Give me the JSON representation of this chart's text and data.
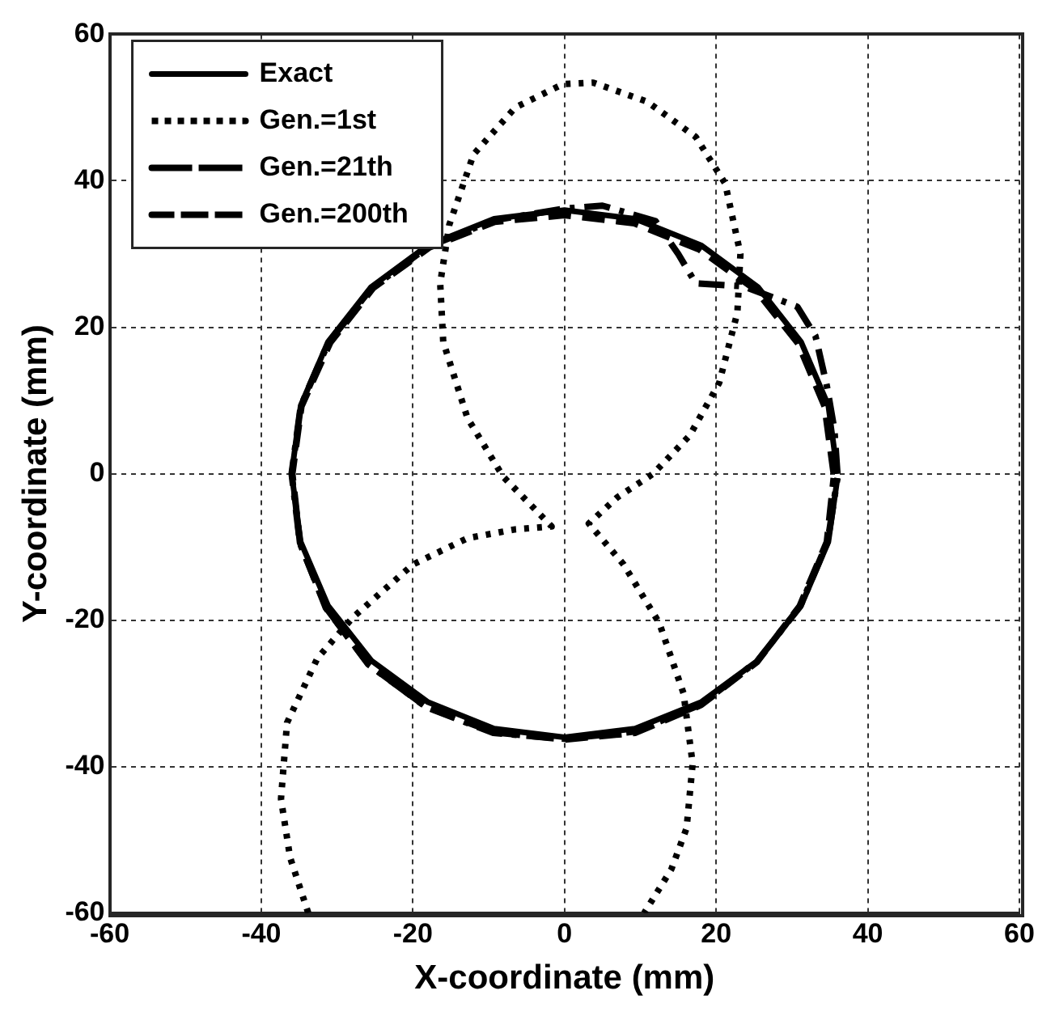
{
  "chart_data": {
    "type": "line",
    "xlabel": "X-coordinate (mm)",
    "ylabel": "Y-coordinate (mm)",
    "xlim": [
      -60,
      60
    ],
    "ylim": [
      -60,
      60
    ],
    "xticks": [
      -60,
      -40,
      -20,
      0,
      20,
      40,
      60
    ],
    "yticks": [
      -60,
      -40,
      -20,
      0,
      20,
      40,
      60
    ],
    "grid": true,
    "legend": "top left",
    "marker": "none",
    "series": [
      {
        "name": "Exact",
        "color": "#000000",
        "line_style": "solid",
        "x": [
          36,
          34.8,
          31.2,
          25.5,
          18,
          9.3,
          0,
          -9.3,
          -18,
          -25.5,
          -31.2,
          -34.8,
          -36,
          -34.8,
          -31.2,
          -25.5,
          -18,
          -9.3,
          0,
          9.3,
          18,
          25.5,
          31.2,
          34.8,
          36
        ],
        "values": [
          0,
          9.3,
          18,
          25.5,
          31.2,
          34.8,
          36,
          34.8,
          31.2,
          25.5,
          18,
          9.3,
          0,
          -9.3,
          -18,
          -25.5,
          -31.2,
          -34.8,
          -36,
          -34.8,
          -31.2,
          -25.5,
          -18,
          -9.3,
          -0.6
        ]
      },
      {
        "name": "Gen.=1st",
        "color": "#000000",
        "line_style": "dotted",
        "x": [
          -33.8,
          -36.2,
          -37.4,
          -36.6,
          -32.6,
          -27.9,
          -20,
          -12.8,
          -6.5,
          -1.7,
          -8.1,
          -12.8,
          -16,
          -16.4,
          -15.2,
          -12,
          -6.5,
          -0.2,
          3.8,
          10.9,
          17.3,
          21.2,
          23.2,
          22.8,
          20.4,
          16.5,
          11.7,
          7,
          3.2,
          7.8,
          12.5,
          15.7,
          16.9,
          16.1,
          14.1,
          10.5
        ],
        "values": [
          -60,
          -52.4,
          -44.4,
          -34,
          -25.2,
          -19.6,
          -12.4,
          -8.8,
          -7.6,
          -7.2,
          -0.4,
          7.6,
          18,
          26,
          34,
          43.6,
          50,
          53.2,
          53.4,
          50.8,
          46,
          39.6,
          30,
          22,
          12.4,
          5.2,
          0,
          -3.2,
          -6.8,
          -12.4,
          -20.4,
          -30,
          -39.6,
          -48.4,
          -54,
          -60
        ]
      },
      {
        "name": "Gen.=21th",
        "color": "#000000",
        "line_style": "dashdot",
        "x": [
          36,
          35.6,
          34.6,
          33.1,
          30.7,
          23.6,
          17.3,
          15,
          12,
          5,
          0,
          -9.3,
          -18,
          -25.5,
          -31.2,
          -34.8,
          -36,
          -34.9,
          -31.4,
          -25.8,
          -18.2,
          -9.4,
          0,
          9.3,
          18,
          25.4,
          31.1,
          34.7,
          36
        ],
        "values": [
          0,
          6,
          12,
          18.8,
          22.8,
          25.6,
          26,
          30,
          34.5,
          36.6,
          36.2,
          34.6,
          31,
          25.3,
          17.8,
          9.2,
          0,
          -9.5,
          -18.4,
          -26.1,
          -31.9,
          -35.4,
          -36.2,
          -35.2,
          -31.5,
          -25.6,
          -18.1,
          -9.3,
          -0.6
        ]
      },
      {
        "name": "Gen.=200th",
        "color": "#000000",
        "line_style": "dashed",
        "x": [
          35.5,
          34.3,
          30.8,
          25.2,
          17.8,
          9.2,
          0,
          -9.2,
          -17.8,
          -25.2,
          -30.9,
          -34.7,
          -35.9,
          -34.9,
          -31.5,
          -25.9,
          -18.3,
          -9.4,
          0,
          9.3,
          18,
          25.4,
          31,
          34.6,
          35.5
        ],
        "values": [
          0,
          9.2,
          17.8,
          25.1,
          30.6,
          34.2,
          35.3,
          34.4,
          30.9,
          25.4,
          17.9,
          9.2,
          0,
          -9.4,
          -18.3,
          -26,
          -31.8,
          -35.3,
          -36.3,
          -35.4,
          -31.6,
          -25.7,
          -18.1,
          -9.3,
          -0.6
        ]
      }
    ]
  }
}
